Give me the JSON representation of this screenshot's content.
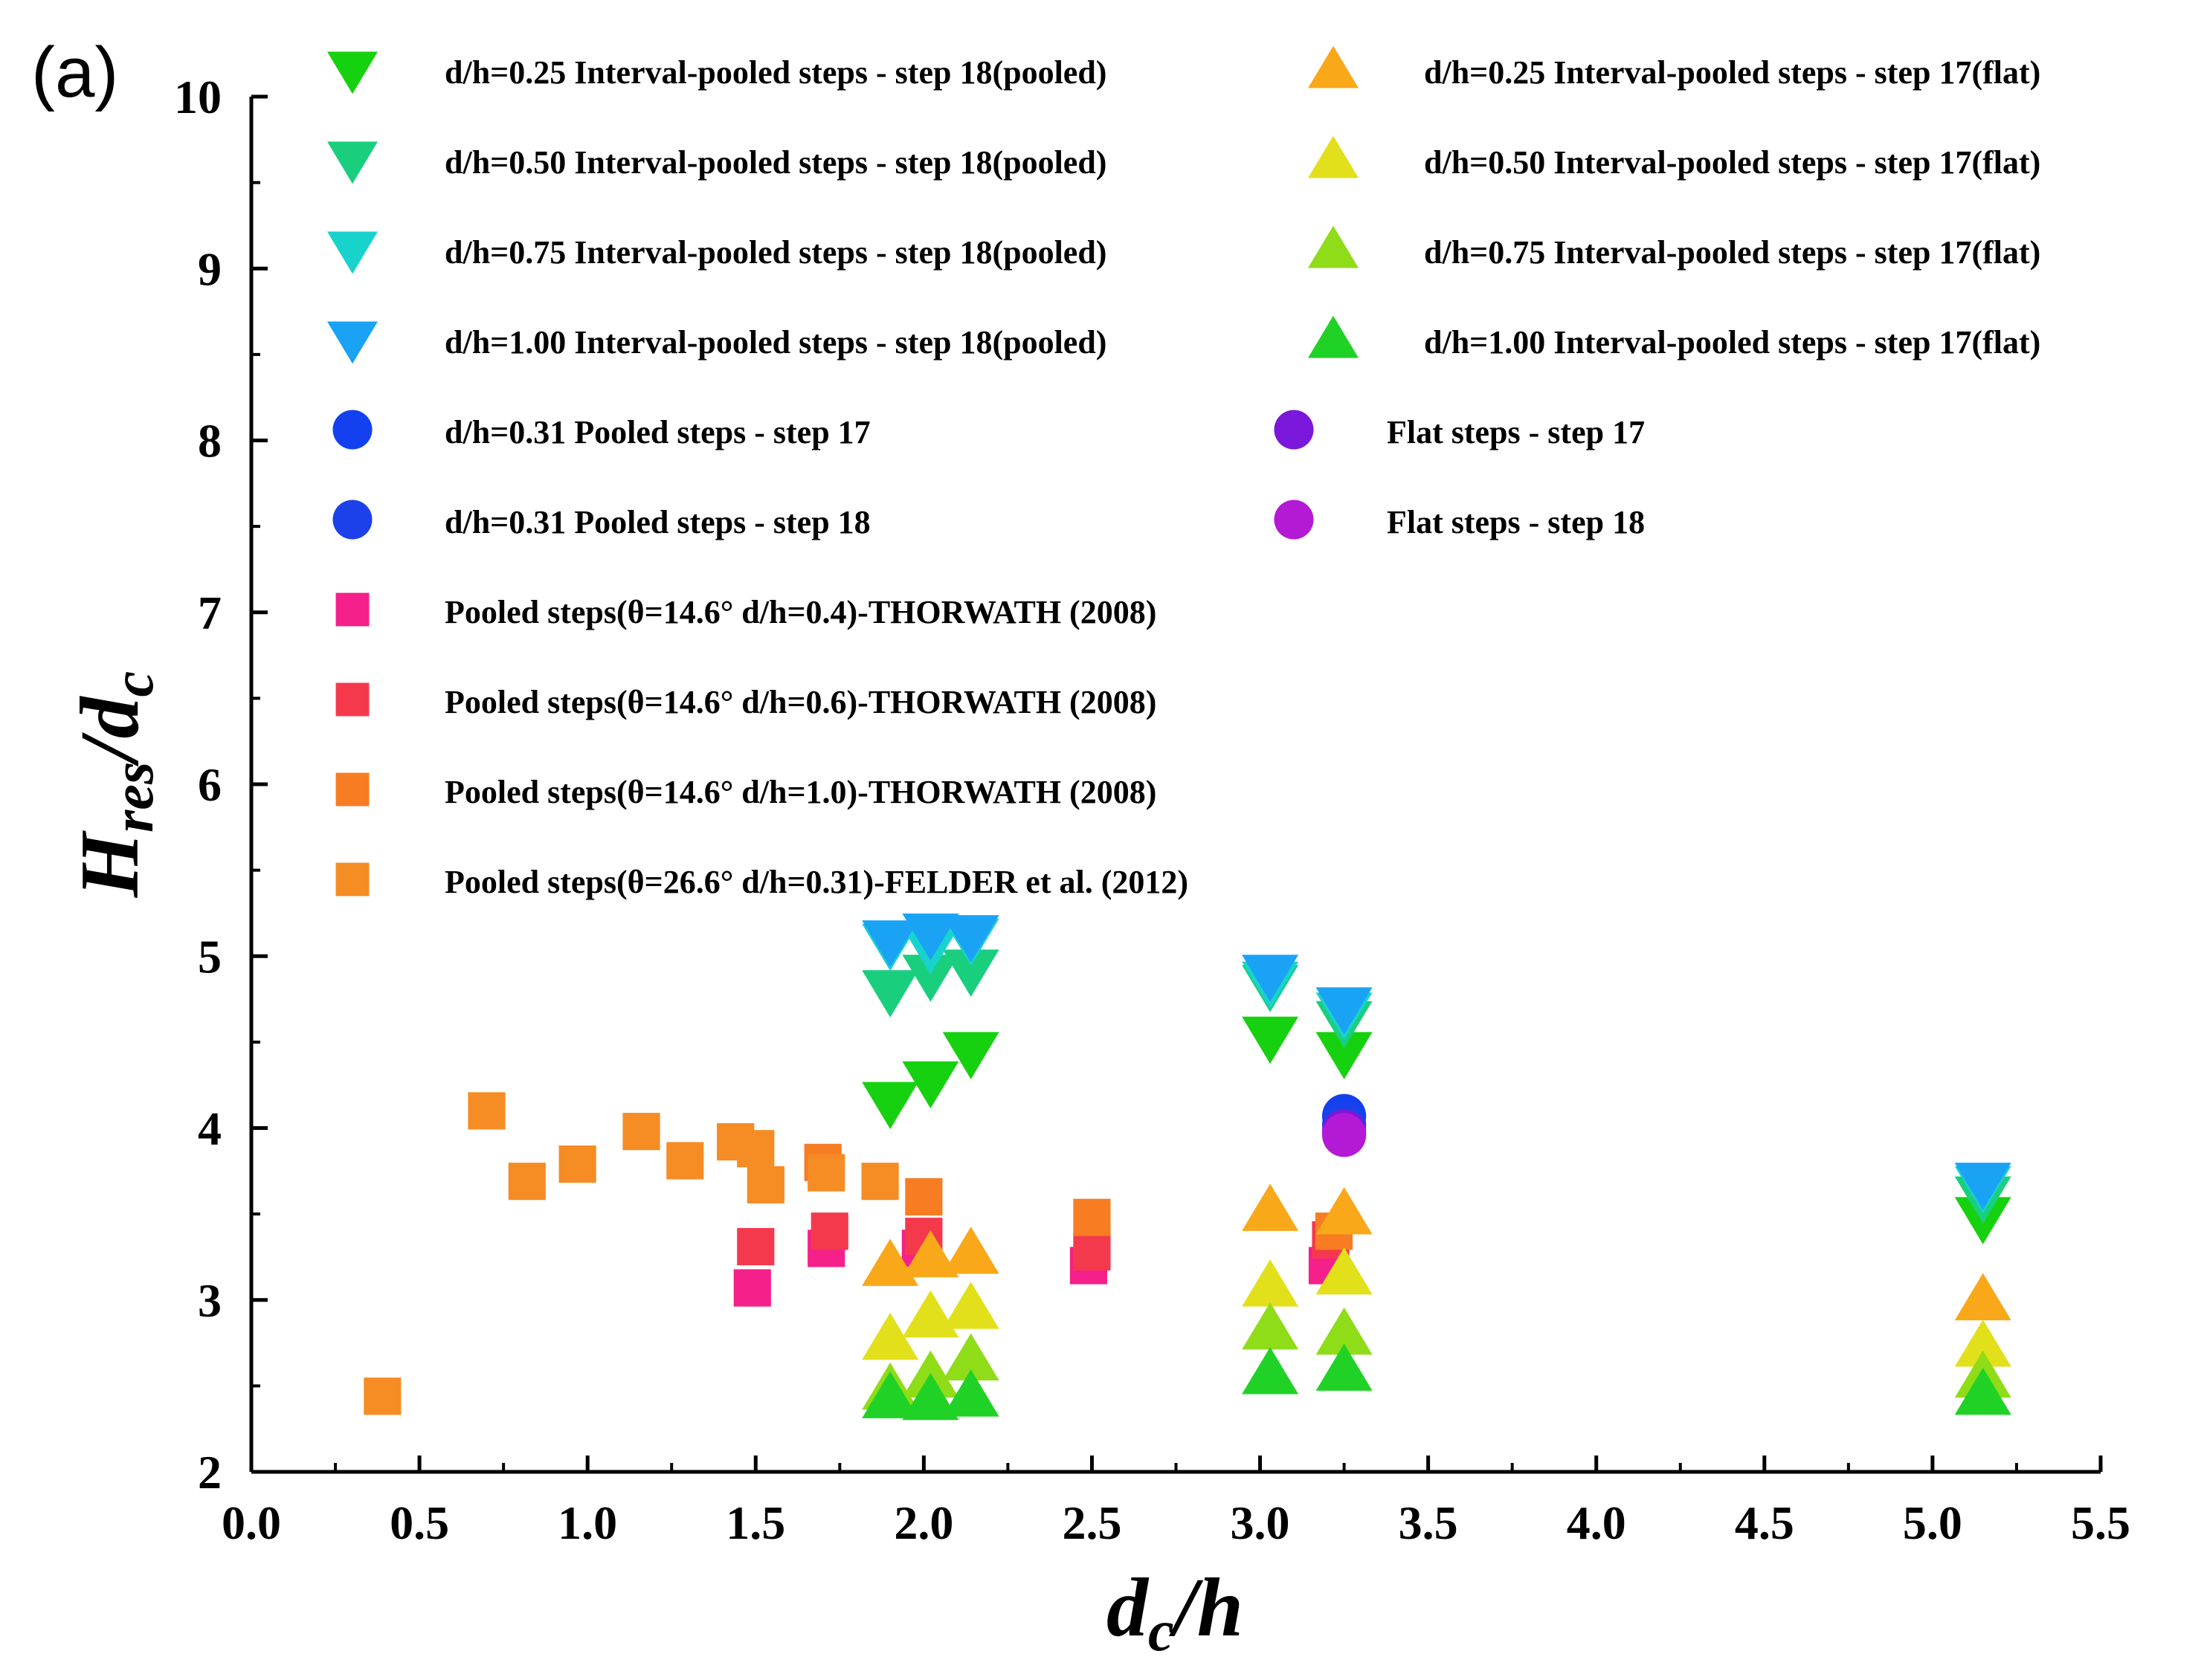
{
  "chart_data": {
    "type": "scatter",
    "panel_label": "(a)",
    "xlabel": "d_c/h",
    "ylabel": "H_res/d_c",
    "xlim": [
      0.0,
      5.5
    ],
    "ylim": [
      2,
      10
    ],
    "xticks": [
      0.0,
      0.5,
      1.0,
      1.5,
      2.0,
      2.5,
      3.0,
      3.5,
      4.0,
      4.5,
      5.0,
      5.5
    ],
    "xtick_labels": [
      "0.0",
      "0.5",
      "1.0",
      "1.5",
      "2.0",
      "2.5",
      "3.0",
      "3.5",
      "4.0",
      "4.5",
      "5.0",
      "5.5"
    ],
    "yticks": [
      2,
      3,
      4,
      5,
      6,
      7,
      8,
      9,
      10
    ],
    "ytick_labels": [
      "2",
      "3",
      "4",
      "5",
      "6",
      "7",
      "8",
      "9",
      "10"
    ],
    "grid": false,
    "legend_position": "top",
    "series": [
      {
        "name": "d/h=0.25 Interval-pooled steps - step 18(pooled)",
        "marker": "triangle-down",
        "color": "#16d10f",
        "x": [
          1.9,
          2.02,
          2.14,
          3.03,
          3.25,
          5.15
        ],
        "y": [
          4.15,
          4.27,
          4.44,
          4.53,
          4.44,
          3.48
        ]
      },
      {
        "name": "d/h=0.50 Interval-pooled steps - step 18(pooled)",
        "marker": "triangle-down",
        "color": "#19cf7e",
        "x": [
          1.9,
          2.02,
          2.14,
          3.03,
          3.25,
          5.15
        ],
        "y": [
          4.8,
          4.89,
          4.92,
          4.83,
          4.62,
          3.6
        ]
      },
      {
        "name": "d/h=0.75 Interval-pooled steps - step 18(pooled)",
        "marker": "triangle-down",
        "color": "#18d3cc",
        "x": [
          1.9,
          2.02,
          2.14,
          3.03,
          3.25,
          5.15
        ],
        "y": [
          5.07,
          5.05,
          5.1,
          4.85,
          4.67,
          3.66
        ]
      },
      {
        "name": "d/h=1.00 Interval-pooled steps - step 18(pooled)",
        "marker": "triangle-down",
        "color": "#1aa3f5",
        "x": [
          1.9,
          2.02,
          2.14,
          3.03,
          3.25,
          5.15
        ],
        "y": [
          5.09,
          5.13,
          5.12,
          4.89,
          4.7,
          3.68
        ]
      },
      {
        "name": "d/h=0.31 Pooled steps - step 17",
        "marker": "circle",
        "color": "#1441ef",
        "x": [
          3.25
        ],
        "y": [
          4.07
        ]
      },
      {
        "name": "d/h=0.31 Pooled steps - step 18",
        "marker": "circle",
        "color": "#1c41ea",
        "x": [
          3.25
        ],
        "y": [
          4.02
        ]
      },
      {
        "name": "Pooled steps(θ=14.6° d/h=0.4)-THORWATH (2008)",
        "marker": "square",
        "color": "#f5208a",
        "x": [
          1.49,
          1.71,
          1.99,
          2.49,
          3.2
        ],
        "y": [
          3.07,
          3.3,
          3.3,
          3.2,
          3.2
        ]
      },
      {
        "name": "Pooled steps(θ=14.6° d/h=0.6)-THORWATH (2008)",
        "marker": "square",
        "color": "#f4394d",
        "x": [
          1.5,
          1.72,
          2.0,
          2.5,
          3.21
        ],
        "y": [
          3.31,
          3.4,
          3.37,
          3.28,
          3.35
        ]
      },
      {
        "name": "Pooled steps(θ=14.6° d/h=1.0)-THORWATH (2008)",
        "marker": "square",
        "color": "#f77c22",
        "x": [
          1.7,
          2.0,
          2.5,
          3.22
        ],
        "y": [
          3.8,
          3.6,
          3.48,
          3.4
        ]
      },
      {
        "name": "Pooled steps(θ=26.6° d/h=0.31)-FELDER et al. (2012)",
        "marker": "square",
        "color": "#f58c24",
        "x": [
          0.39,
          0.7,
          0.82,
          0.97,
          1.16,
          1.29,
          1.44,
          1.5,
          1.53,
          1.71,
          1.87
        ],
        "y": [
          2.44,
          4.1,
          3.69,
          3.79,
          3.98,
          3.81,
          3.92,
          3.88,
          3.67,
          3.74,
          3.69
        ]
      },
      {
        "name": "d/h=0.25 Interval-pooled steps - step 17(flat)",
        "marker": "triangle-up",
        "color": "#f8a818",
        "x": [
          1.9,
          2.02,
          2.14,
          3.03,
          3.25,
          5.15
        ],
        "y": [
          3.2,
          3.25,
          3.27,
          3.52,
          3.5,
          3.0
        ]
      },
      {
        "name": "d/h=0.50 Interval-pooled steps - step 17(flat)",
        "marker": "triangle-up",
        "color": "#e2e01a",
        "x": [
          1.9,
          2.02,
          2.14,
          3.03,
          3.25,
          5.15
        ],
        "y": [
          2.77,
          2.9,
          2.95,
          3.08,
          3.15,
          2.73
        ]
      },
      {
        "name": "d/h=0.75 Interval-pooled steps - step 17(flat)",
        "marker": "triangle-up",
        "color": "#8fdc18",
        "x": [
          1.9,
          2.02,
          2.14,
          3.03,
          3.25,
          5.15
        ],
        "y": [
          2.48,
          2.55,
          2.65,
          2.83,
          2.8,
          2.55
        ]
      },
      {
        "name": "d/h=1.00 Interval-pooled steps - step 17(flat)",
        "marker": "triangle-up",
        "color": "#20d225",
        "x": [
          1.9,
          2.02,
          2.14,
          3.03,
          3.25,
          5.15
        ],
        "y": [
          2.43,
          2.42,
          2.44,
          2.57,
          2.59,
          2.45
        ]
      },
      {
        "name": "Flat steps - step 17",
        "marker": "circle",
        "color": "#7b17db",
        "x": [
          3.25
        ],
        "y": [
          3.98
        ]
      },
      {
        "name": "Flat steps - step 18",
        "marker": "circle",
        "color": "#b419d6",
        "x": [
          3.25
        ],
        "y": [
          3.96
        ]
      }
    ]
  }
}
